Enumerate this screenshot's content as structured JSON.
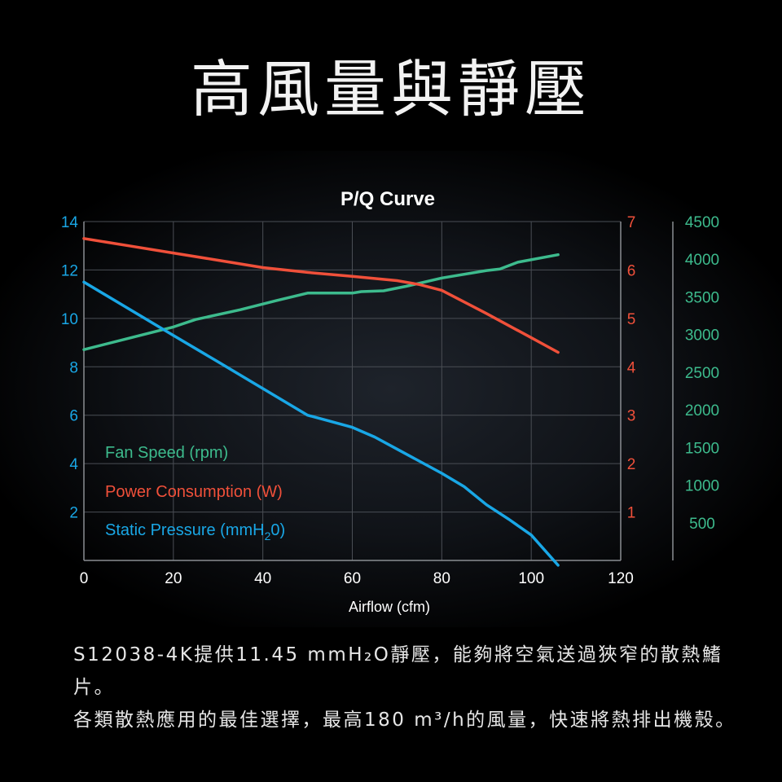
{
  "page_title": "高風量與靜壓",
  "caption": {
    "line1": "S12038-4K提供11.45 mmH₂O靜壓，能夠將空氣送過狹窄的散熱鰭片。",
    "line2": "各類散熱應用的最佳選擇，最高180 m³/h的風量，快速將熱排出機殼。"
  },
  "colors": {
    "fan_speed": "#3dbb8d",
    "power": "#f0503a",
    "pressure": "#19a7e6",
    "grid": "#4a4e55",
    "axis_text": "#ffffff"
  },
  "chart_data": {
    "type": "line",
    "title": "P/Q Curve",
    "xlabel": "Airflow (cfm)",
    "x_ticks": [
      "0",
      "20",
      "40",
      "60",
      "80",
      "100",
      "120"
    ],
    "xlim": [
      0,
      120
    ],
    "grid": true,
    "legend_position": "bottom-left",
    "axes": {
      "left": {
        "ticks": [
          "2",
          "4",
          "6",
          "8",
          "10",
          "12",
          "14"
        ],
        "lim": [
          0,
          14
        ],
        "color": "#19a7e6"
      },
      "right_inner": {
        "ticks": [
          "1",
          "2",
          "3",
          "4",
          "5",
          "6",
          "7"
        ],
        "lim": [
          0,
          7
        ],
        "color": "#f0503a"
      },
      "right_outer": {
        "ticks": [
          "500",
          "1000",
          "1500",
          "2000",
          "2500",
          "3000",
          "3500",
          "4000",
          "4500"
        ],
        "lim": [
          0,
          4500
        ],
        "color": "#3dbb8d"
      }
    },
    "series": [
      {
        "name": "Fan Speed (rpm)",
        "axis": "right_outer",
        "color": "#3dbb8d",
        "x": [
          0,
          10,
          20,
          25,
          35,
          43,
          50,
          60,
          62,
          67,
          72,
          80,
          90,
          93,
          97,
          106
        ],
        "y": [
          2800,
          2950,
          3100,
          3200,
          3330,
          3450,
          3550,
          3550,
          3570,
          3580,
          3640,
          3750,
          3850,
          3870,
          3960,
          4060
        ]
      },
      {
        "name": "Power Consumption (W)",
        "axis": "right_inner",
        "color": "#f0503a",
        "x": [
          0,
          10,
          20,
          30,
          40,
          50,
          60,
          70,
          75,
          80,
          90,
          100,
          103,
          106
        ],
        "y": [
          6.65,
          6.5,
          6.35,
          6.2,
          6.05,
          5.95,
          5.87,
          5.78,
          5.7,
          5.58,
          5.1,
          4.6,
          4.45,
          4.3
        ]
      },
      {
        "name": "Static Pressure (mmH₂O)",
        "name_parts": [
          "Static Pressure (mmH",
          "2",
          "0)"
        ],
        "axis": "left",
        "color": "#19a7e6",
        "x": [
          0,
          10,
          20,
          30,
          40,
          50,
          55,
          60,
          65,
          70,
          80,
          85,
          90,
          95,
          100,
          106
        ],
        "y": [
          11.5,
          10.4,
          9.3,
          8.2,
          7.1,
          6.0,
          5.75,
          5.5,
          5.1,
          4.6,
          3.6,
          3.05,
          2.3,
          1.7,
          1.05,
          -0.2
        ]
      }
    ]
  }
}
